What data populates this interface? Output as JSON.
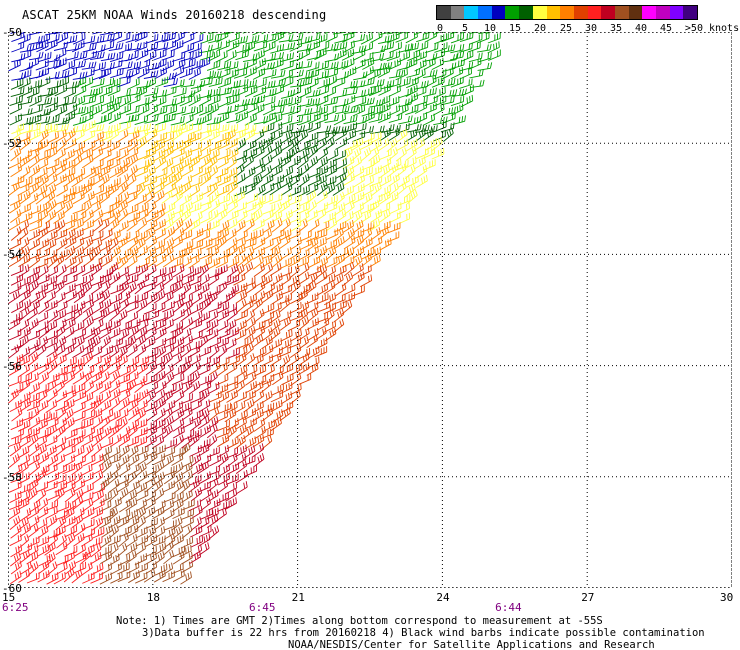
{
  "title": "ASCAT 25KM NOAA Winds 20160218 descending",
  "legend": {
    "colors": [
      "#404040",
      "#808080",
      "#00c8ff",
      "#0070ff",
      "#0000c0",
      "#00a000",
      "#006000",
      "#ffff40",
      "#ffc000",
      "#ff8000",
      "#e04000",
      "#ff2020",
      "#c00020",
      "#a05020",
      "#603010",
      "#ff00ff",
      "#c000c0",
      "#8000ff",
      "#400080"
    ],
    "labels": [
      "0",
      "5",
      "10",
      "15",
      "20",
      "25",
      "30",
      "35",
      "40",
      "45",
      ">50 knots"
    ]
  },
  "map": {
    "lon_range": [
      15,
      30
    ],
    "lat_range": [
      -60,
      -50
    ],
    "lon_ticks": [
      "15",
      "18",
      "21",
      "24",
      "27",
      "30"
    ],
    "lat_ticks": [
      "-50",
      "-52",
      "-54",
      "-56",
      "-58",
      "-60"
    ],
    "grid": "dotted",
    "times": [
      {
        "label": "6:25",
        "lon": 15
      },
      {
        "label": "6:45",
        "lon": 20.2
      },
      {
        "label": "6:44",
        "lon": 25.3
      }
    ]
  },
  "notes": [
    "Note: 1) Times are GMT 2)Times along bottom correspond to measurement at -55S",
    "3)Data buffer is 22 hrs from 20160218 4) Black wind barbs indicate possible contamination",
    "NOAA/NESDIS/Center for Satellite Applications and Research"
  ]
}
